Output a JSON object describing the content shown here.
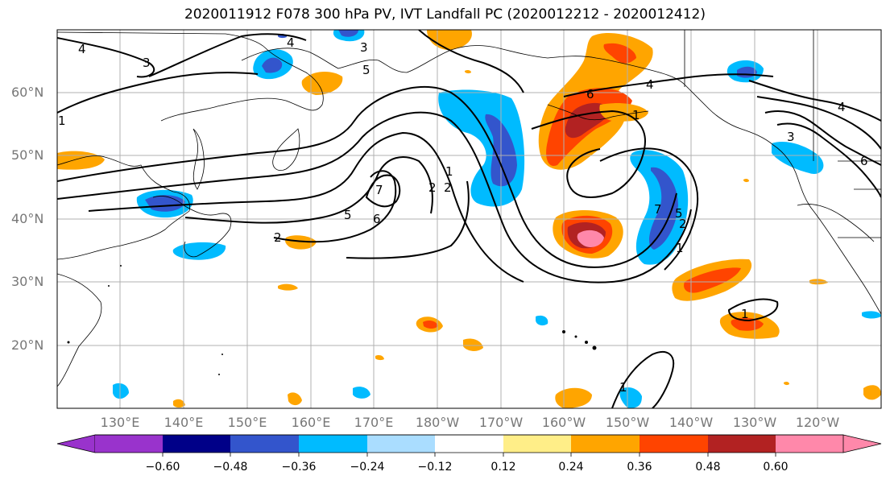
{
  "title": "2020011912 F078 300 hPa PV, IVT Landfall PC (2020012212 - 2020012412)",
  "map": {
    "lat_labels": [
      "60°N",
      "50°N",
      "40°N",
      "30°N",
      "20°N"
    ],
    "lon_labels": [
      "130°E",
      "140°E",
      "150°E",
      "160°E",
      "170°E",
      "180°W",
      "170°W",
      "160°W",
      "150°W",
      "140°W",
      "130°W",
      "120°W"
    ],
    "contour_labels": [
      "4",
      "4",
      "3",
      "3",
      "5",
      "6",
      "4",
      "1",
      "2",
      "7",
      "2",
      "1",
      "2",
      "5",
      "6",
      "1",
      "7",
      "4",
      "3",
      "6",
      "1",
      "1",
      "5",
      "2",
      "1"
    ]
  },
  "colorbar": {
    "colors": [
      "#9933cc",
      "#000088",
      "#3355cc",
      "#00bbff",
      "#aaddff",
      "#ffffff",
      "#ffee88",
      "#ffa500",
      "#ff4400",
      "#b22222",
      "#ff88aa"
    ],
    "tick_labels": [
      "−0.60",
      "−0.48",
      "−0.36",
      "−0.24",
      "−0.12",
      "0.12",
      "0.24",
      "0.36",
      "0.48",
      "0.60"
    ]
  }
}
